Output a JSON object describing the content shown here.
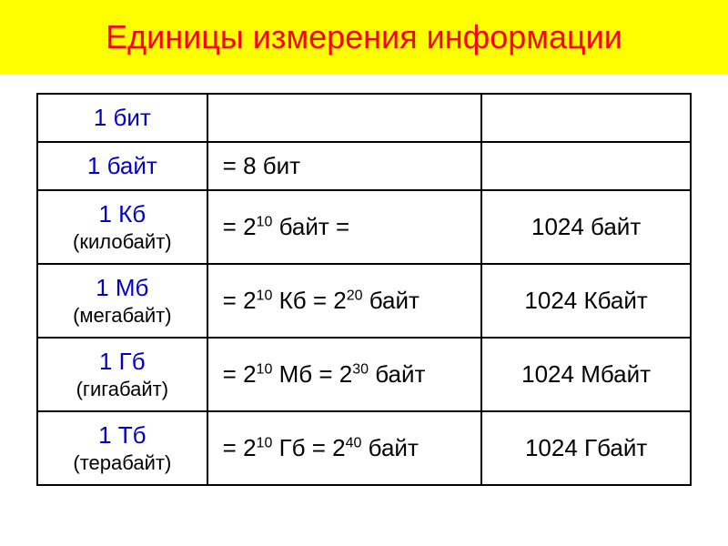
{
  "title": "Единицы измерения информации",
  "title_color": "#ff0000",
  "title_bg_color": "#ffff00",
  "unit_label_color": "#0000cc",
  "border_color": "#000000",
  "background_color": "#ffffff",
  "table": {
    "rows": [
      {
        "unit_label": "1 бит",
        "unit_sub": "",
        "formula": "",
        "value": "",
        "tall": false
      },
      {
        "unit_label": "1 байт",
        "unit_sub": "",
        "formula": "= 8 бит",
        "value": "",
        "tall": false
      },
      {
        "unit_label": "1 Кб",
        "unit_sub": "(килобайт)",
        "formula_html": "= 2<sup>10</sup> байт =",
        "value": "1024 байт",
        "tall": true
      },
      {
        "unit_label": "1 Мб",
        "unit_sub": "(мегабайт)",
        "formula_html": "= 2<sup>10</sup> Кб = 2<sup>20</sup> байт",
        "value": "1024 Кбайт",
        "tall": true
      },
      {
        "unit_label": "1 Гб",
        "unit_sub": "(гигабайт)",
        "formula_html": "= 2<sup>10</sup> Мб = 2<sup>30</sup> байт",
        "value": "1024 Мбайт",
        "tall": true
      },
      {
        "unit_label": "1 Тб",
        "unit_sub": "(терабайт)",
        "formula_html": "= 2<sup>10</sup> Гб = 2<sup>40</sup> байт",
        "value": "1024 Гбайт",
        "tall": true
      }
    ],
    "columns": [
      {
        "name": "unit",
        "width": "26%",
        "align": "center"
      },
      {
        "name": "formula",
        "width": "42%",
        "align": "left"
      },
      {
        "name": "value",
        "width": "32%",
        "align": "center"
      }
    ]
  },
  "typography": {
    "title_fontsize": 36,
    "cell_fontsize": 26,
    "sub_fontsize": 22,
    "sup_fontsize": 16
  }
}
